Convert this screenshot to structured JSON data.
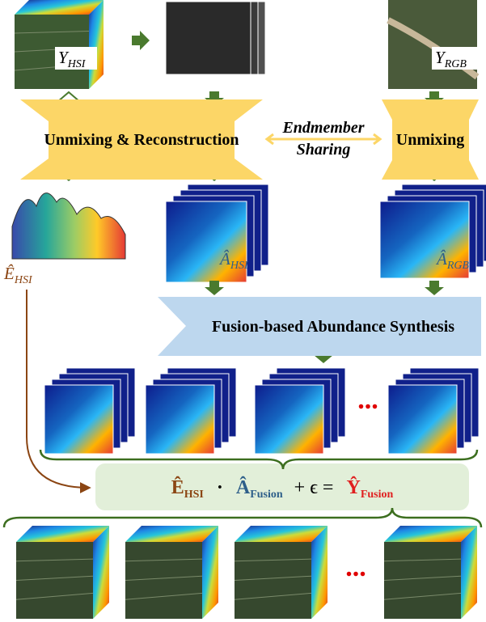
{
  "y_hsi": {
    "base": "Y",
    "sub": "HSI"
  },
  "y_rgb": {
    "base": "Y",
    "sub": "RGB"
  },
  "unmixing_reconstruction": "Unmixing & Reconstruction",
  "endmember_sharing": [
    "Endmember",
    "Sharing"
  ],
  "unmixing": "Unmixing",
  "a_hsi": {
    "base": "Â",
    "sub": "HSI"
  },
  "a_rgb": {
    "base": "Â",
    "sub": "RGB"
  },
  "e_hsi": {
    "base": "Ê",
    "sub": "HSI"
  },
  "fusion_synthesis": "Fusion-based Abundance Synthesis",
  "ellipsis_top": "...",
  "ellipsis_bottom": "...",
  "equation": {
    "e": {
      "base": "Ê",
      "sub": "HSI"
    },
    "dot": "·",
    "a": {
      "base": "Â",
      "sub": "Fusion"
    },
    "plus": "+ ϵ =",
    "y": {
      "base": "Ŷ",
      "sub": "Fusion"
    }
  }
}
